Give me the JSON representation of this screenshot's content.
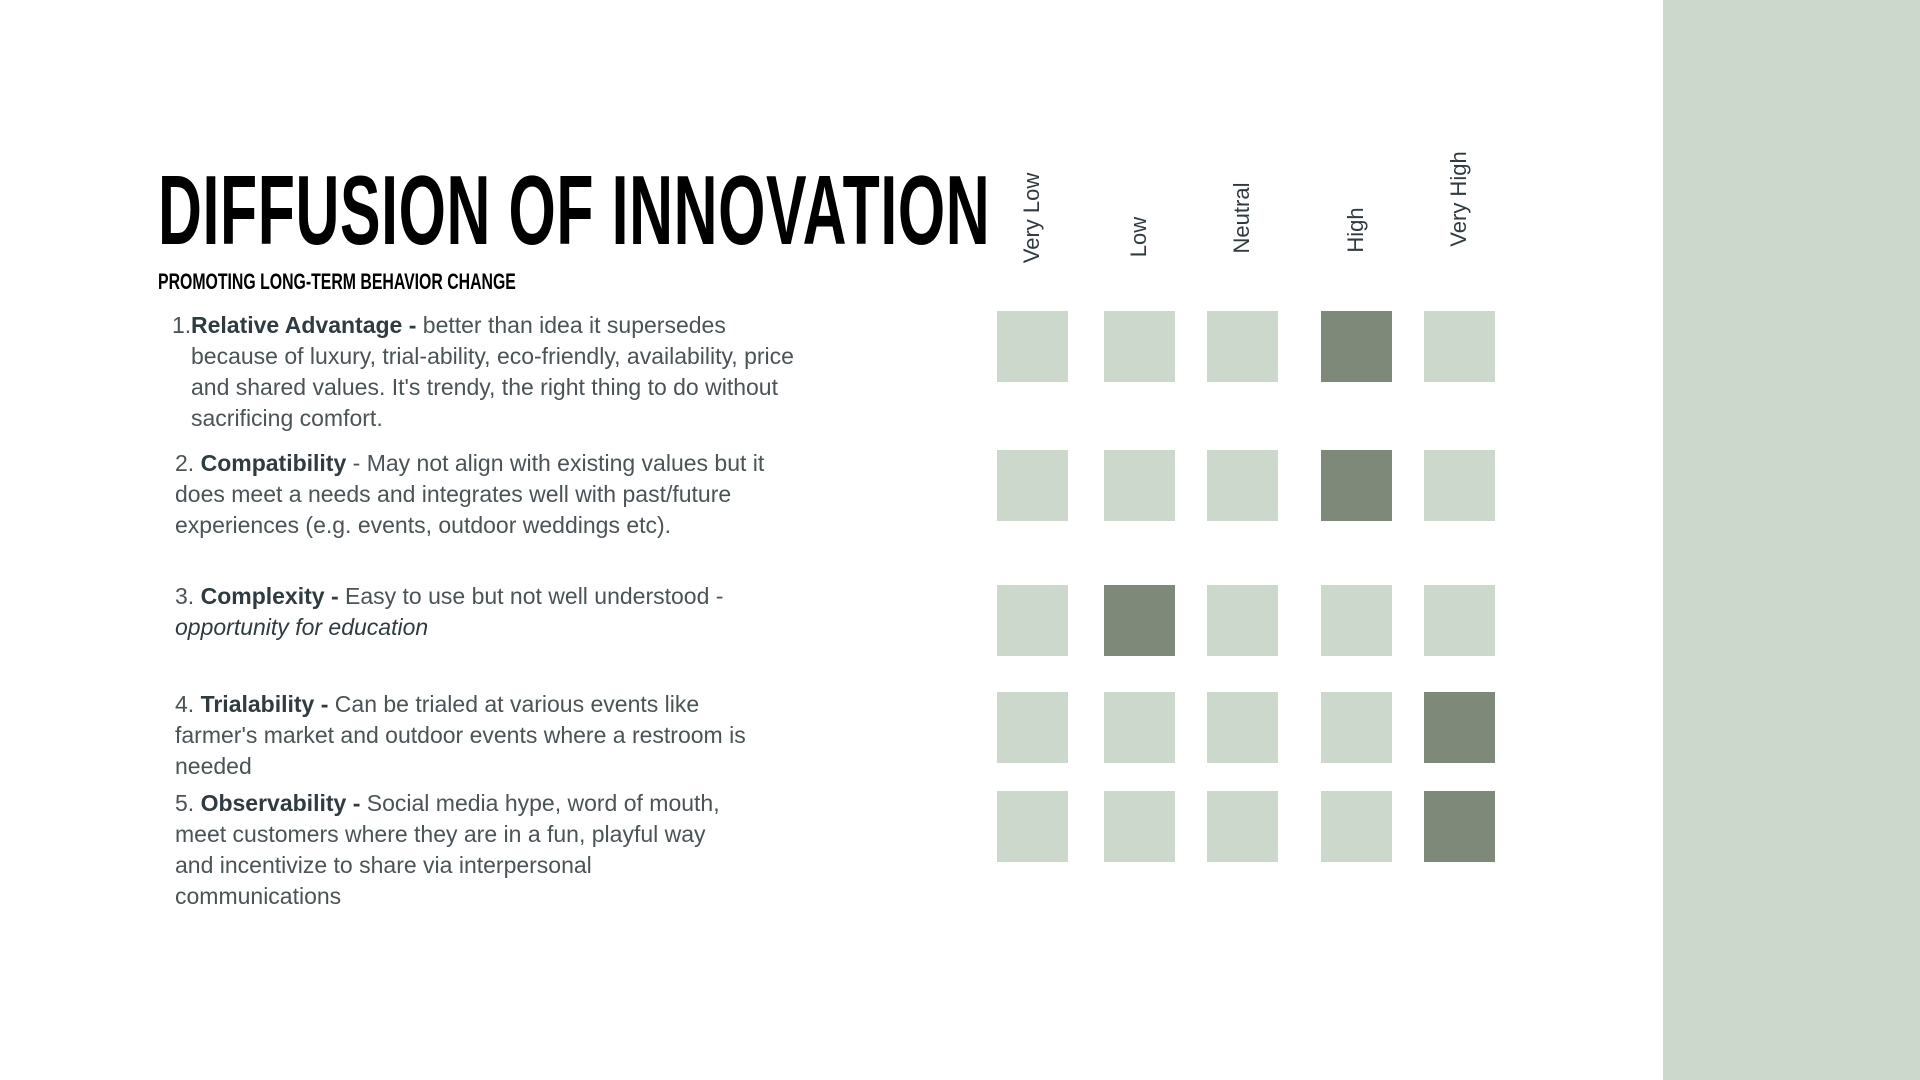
{
  "title": "DIFFUSION OF INNOVATION",
  "subtitle": "PROMOTING LONG-TERM BEHAVIOR CHANGE",
  "items": [
    {
      "number": "1.",
      "term": "Relative Advantage -",
      "lines": [
        "better than idea it supersedes",
        "because of luxury, trial-ability, eco-friendly, availability, price",
        "and shared values. It's trendy, the right thing to do without",
        "sacrificing comfort."
      ]
    },
    {
      "number": "2.",
      "term": "Compatibility",
      "lines": [
        "- May not align with existing values but it",
        "does meet a needs and integrates well with past/future",
        "experiences (e.g. events, outdoor weddings etc)."
      ]
    },
    {
      "number": "3.",
      "term": "Complexity -",
      "lines": [
        "Easy to use but not well understood -",
        "opportunity for education"
      ]
    },
    {
      "number": "4.",
      "term": "Trialability -",
      "lines": [
        "Can be trialed at various events like",
        "farmer's market and outdoor events where a restroom is",
        "needed"
      ]
    },
    {
      "number": "5.",
      "term": "Observability -",
      "lines": [
        "Social media hype, word of mouth,",
        "meet customers where they are in a fun, playful way",
        "and incentivize to share via interpersonal",
        "communications"
      ]
    }
  ],
  "scale": {
    "columns": [
      "Very  Low",
      "Low",
      "Neutral",
      "High",
      "Very  High"
    ],
    "ratings": [
      3,
      3,
      1,
      4,
      4
    ],
    "colors": {
      "inactive": "#cdd8cc",
      "active": "#7f897a",
      "panel": "#cdd8cc"
    }
  }
}
